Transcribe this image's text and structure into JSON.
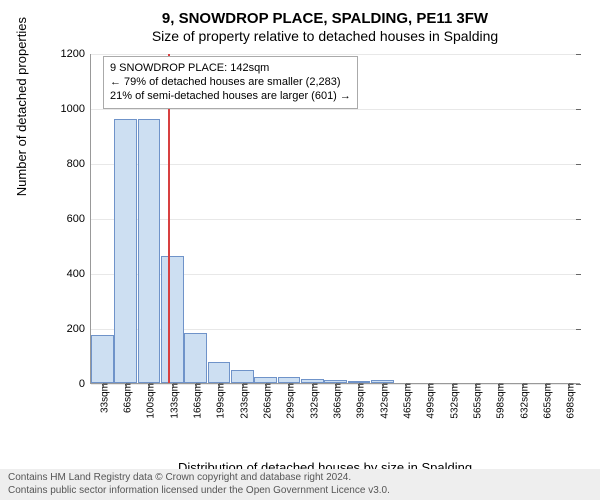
{
  "chart": {
    "type": "histogram",
    "title": "9, SNOWDROP PLACE, SPALDING, PE11 3FW",
    "subtitle": "Size of property relative to detached houses in Spalding",
    "ylabel": "Number of detached properties",
    "xlabel": "Distribution of detached houses by size in Spalding",
    "background_color": "#ffffff",
    "grid_color": "#e8e8e8",
    "axis_color": "#999999",
    "bar_fill": "#cddff2",
    "bar_stroke": "#6f93c9",
    "refline_color": "#d84040",
    "ymax": 1200,
    "ytick_step": 200,
    "yticks": [
      0,
      200,
      400,
      600,
      800,
      1000,
      1200
    ],
    "xticks": [
      "33sqm",
      "66sqm",
      "100sqm",
      "133sqm",
      "166sqm",
      "199sqm",
      "233sqm",
      "266sqm",
      "299sqm",
      "332sqm",
      "366sqm",
      "399sqm",
      "432sqm",
      "465sqm",
      "499sqm",
      "532sqm",
      "565sqm",
      "598sqm",
      "632sqm",
      "665sqm",
      "698sqm"
    ],
    "values": [
      175,
      960,
      960,
      460,
      180,
      75,
      45,
      20,
      20,
      13,
      10,
      6,
      10,
      0,
      0,
      0,
      0,
      0,
      0,
      0,
      0
    ],
    "refline_at_index": 3.3,
    "annotation": {
      "lines": [
        "9 SNOWDROP PLACE: 142sqm",
        "← 79% of detached houses are smaller (2,283)",
        "21% of semi-detached houses are larger (601) →"
      ]
    }
  },
  "footer": {
    "line1": "Contains HM Land Registry data © Crown copyright and database right 2024.",
    "line2": "Contains public sector information licensed under the Open Government Licence v3.0."
  }
}
